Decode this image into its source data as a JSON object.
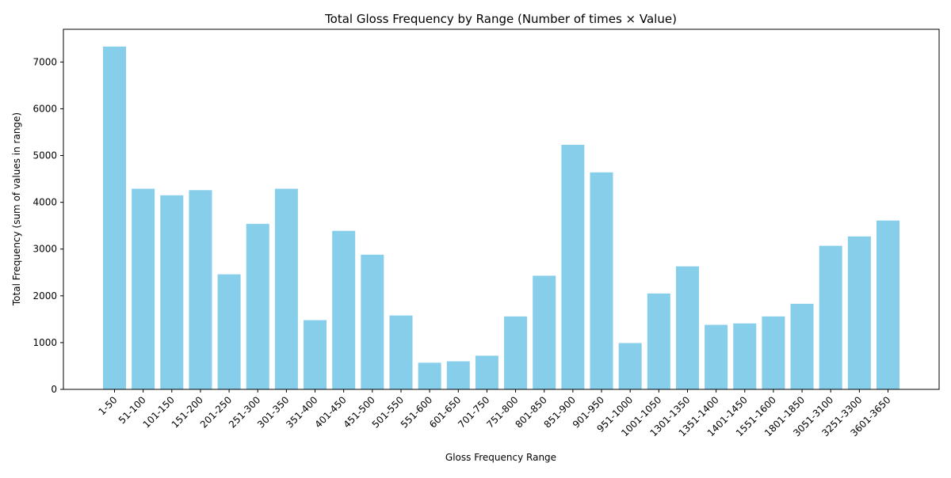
{
  "chart_data": {
    "type": "bar",
    "title": "Total Gloss Frequency by Range (Number of times × Value)",
    "xlabel": "Gloss Frequency Range",
    "ylabel": "Total Frequency (sum of values in range)",
    "ylim": [
      0,
      7700
    ],
    "yticks": [
      0,
      1000,
      2000,
      3000,
      4000,
      5000,
      6000,
      7000
    ],
    "grid": false,
    "bar_color": "#87CEEB",
    "categories": [
      "1-50",
      "51-100",
      "101-150",
      "151-200",
      "201-250",
      "251-300",
      "301-350",
      "351-400",
      "401-450",
      "451-500",
      "501-550",
      "551-600",
      "601-650",
      "701-750",
      "751-800",
      "801-850",
      "851-900",
      "901-950",
      "951-1000",
      "1001-1050",
      "1301-1350",
      "1351-1400",
      "1401-1450",
      "1551-1600",
      "1801-1850",
      "3051-3100",
      "3251-3300",
      "3601-3650"
    ],
    "values": [
      7330,
      4290,
      4150,
      4260,
      2460,
      3540,
      4290,
      1480,
      3390,
      2880,
      1580,
      570,
      600,
      720,
      1560,
      2430,
      5230,
      4640,
      990,
      2050,
      2630,
      1380,
      1410,
      1560,
      1830,
      3070,
      3270,
      3610
    ]
  }
}
